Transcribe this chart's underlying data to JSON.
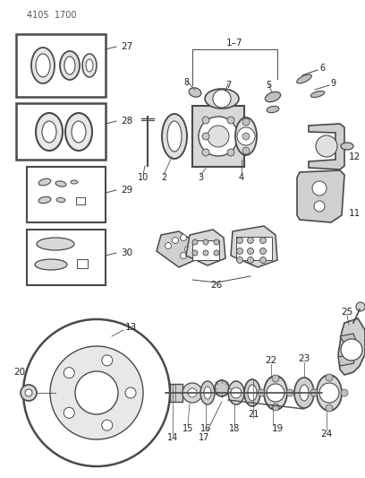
{
  "header_code": "4105  1700",
  "bg_color": "#ffffff",
  "line_color": "#4a4a4a",
  "text_color": "#222222",
  "fig_width": 4.08,
  "fig_height": 5.33,
  "dpi": 100,
  "gray1": "#c0c0c0",
  "gray2": "#d8d8d8",
  "gray3": "#b0b0b0"
}
